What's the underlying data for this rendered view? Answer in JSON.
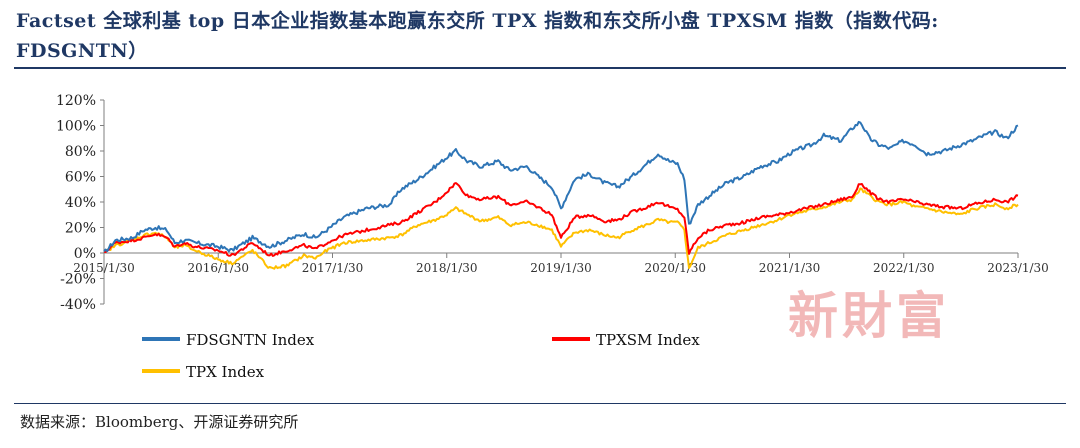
{
  "title": {
    "line1": "Factset 全球利基 top 日本企业指数基本跑赢东交所 TPX 指数和东交所小盘 TPXSM 指数（指数代码:",
    "line2": "FDSGNTN）"
  },
  "source": "数据来源：Bloomberg、开源证券研究所",
  "watermark": "新財富",
  "chart_data": {
    "type": "line",
    "x_tick_labels": [
      "2015/1/30",
      "2016/1/30",
      "2017/1/30",
      "2018/1/30",
      "2019/1/30",
      "2020/1/30",
      "2021/1/30",
      "2022/1/30",
      "2023/1/30"
    ],
    "y_tick_labels": [
      "120%",
      "100%",
      "80%",
      "60%",
      "40%",
      "20%",
      "0%",
      "-20%",
      "-40%"
    ],
    "ylim": [
      -40,
      120
    ],
    "y_unit": "%",
    "xlim": [
      2015.0,
      2023.0
    ],
    "legend_position": "bottom-left",
    "series": [
      {
        "name": "FDSGNTN Index",
        "color": "#2e75b6",
        "x": [
          2015.0,
          2015.1,
          2015.25,
          2015.35,
          2015.45,
          2015.55,
          2015.62,
          2015.7,
          2015.8,
          2016.0,
          2016.12,
          2016.3,
          2016.45,
          2016.6,
          2016.75,
          2016.85,
          2016.95,
          2017.1,
          2017.3,
          2017.5,
          2017.6,
          2017.75,
          2017.9,
          2018.0,
          2018.08,
          2018.18,
          2018.3,
          2018.45,
          2018.55,
          2018.7,
          2018.8,
          2018.92,
          2019.0,
          2019.12,
          2019.25,
          2019.38,
          2019.5,
          2019.62,
          2019.75,
          2019.85,
          2019.95,
          2020.02,
          2020.08,
          2020.12,
          2020.2,
          2020.3,
          2020.45,
          2020.6,
          2020.75,
          2020.9,
          2021.0,
          2021.1,
          2021.2,
          2021.3,
          2021.45,
          2021.55,
          2021.62,
          2021.7,
          2021.78,
          2021.88,
          2022.0,
          2022.1,
          2022.2,
          2022.35,
          2022.5,
          2022.6,
          2022.7,
          2022.8,
          2022.9,
          2023.0
        ],
        "y": [
          0,
          10,
          12,
          18,
          20,
          18,
          8,
          10,
          8,
          5,
          2,
          12,
          5,
          10,
          15,
          12,
          18,
          28,
          35,
          38,
          50,
          58,
          68,
          75,
          80,
          72,
          68,
          72,
          65,
          68,
          60,
          52,
          35,
          58,
          62,
          55,
          52,
          60,
          70,
          78,
          72,
          70,
          58,
          22,
          38,
          45,
          55,
          60,
          68,
          72,
          78,
          82,
          85,
          92,
          88,
          98,
          103,
          90,
          85,
          82,
          88,
          85,
          78,
          80,
          85,
          88,
          92,
          95,
          90,
          100
        ]
      },
      {
        "name": "TPXSM Index",
        "color": "#ff0000",
        "x": [
          2015.0,
          2015.1,
          2015.25,
          2015.35,
          2015.45,
          2015.55,
          2015.62,
          2015.7,
          2015.8,
          2016.0,
          2016.12,
          2016.3,
          2016.45,
          2016.6,
          2016.75,
          2016.85,
          2016.95,
          2017.1,
          2017.3,
          2017.5,
          2017.6,
          2017.75,
          2017.9,
          2018.0,
          2018.08,
          2018.18,
          2018.3,
          2018.45,
          2018.55,
          2018.7,
          2018.8,
          2018.92,
          2019.0,
          2019.12,
          2019.25,
          2019.38,
          2019.5,
          2019.62,
          2019.75,
          2019.85,
          2019.95,
          2020.02,
          2020.08,
          2020.12,
          2020.2,
          2020.3,
          2020.45,
          2020.6,
          2020.75,
          2020.9,
          2021.0,
          2021.1,
          2021.2,
          2021.3,
          2021.45,
          2021.55,
          2021.62,
          2021.7,
          2021.78,
          2021.88,
          2022.0,
          2022.1,
          2022.2,
          2022.35,
          2022.5,
          2022.6,
          2022.7,
          2022.8,
          2022.9,
          2023.0
        ],
        "y": [
          0,
          8,
          10,
          12,
          15,
          12,
          5,
          8,
          5,
          2,
          -2,
          8,
          -2,
          2,
          6,
          3,
          8,
          14,
          18,
          22,
          24,
          32,
          40,
          48,
          55,
          45,
          42,
          44,
          38,
          40,
          36,
          30,
          12,
          28,
          30,
          25,
          26,
          32,
          36,
          40,
          36,
          34,
          28,
          0,
          12,
          18,
          22,
          24,
          28,
          30,
          32,
          34,
          36,
          38,
          42,
          44,
          55,
          48,
          42,
          40,
          42,
          40,
          38,
          36,
          35,
          38,
          40,
          42,
          40,
          45
        ]
      },
      {
        "name": "TPX Index",
        "color": "#ffc000",
        "x": [
          2015.0,
          2015.1,
          2015.25,
          2015.35,
          2015.45,
          2015.55,
          2015.62,
          2015.7,
          2015.8,
          2016.0,
          2016.12,
          2016.3,
          2016.45,
          2016.6,
          2016.75,
          2016.85,
          2016.95,
          2017.1,
          2017.3,
          2017.5,
          2017.6,
          2017.75,
          2017.9,
          2018.0,
          2018.08,
          2018.18,
          2018.3,
          2018.45,
          2018.55,
          2018.7,
          2018.8,
          2018.92,
          2019.0,
          2019.12,
          2019.25,
          2019.38,
          2019.5,
          2019.62,
          2019.75,
          2019.85,
          2019.95,
          2020.02,
          2020.08,
          2020.12,
          2020.2,
          2020.3,
          2020.45,
          2020.6,
          2020.75,
          2020.9,
          2021.0,
          2021.1,
          2021.2,
          2021.3,
          2021.45,
          2021.55,
          2021.62,
          2021.7,
          2021.78,
          2021.88,
          2022.0,
          2022.1,
          2022.2,
          2022.35,
          2022.5,
          2022.6,
          2022.7,
          2022.8,
          2022.9,
          2023.0
        ],
        "y": [
          0,
          6,
          10,
          14,
          16,
          12,
          4,
          6,
          2,
          -5,
          -8,
          2,
          -12,
          -10,
          -2,
          -4,
          2,
          8,
          10,
          12,
          14,
          22,
          26,
          30,
          35,
          30,
          25,
          28,
          22,
          24,
          22,
          18,
          5,
          16,
          18,
          14,
          12,
          18,
          22,
          26,
          24,
          24,
          18,
          -12,
          4,
          8,
          14,
          18,
          22,
          26,
          30,
          32,
          34,
          36,
          40,
          42,
          50,
          45,
          40,
          38,
          40,
          36,
          35,
          32,
          30,
          34,
          36,
          38,
          35,
          38
        ]
      }
    ]
  }
}
